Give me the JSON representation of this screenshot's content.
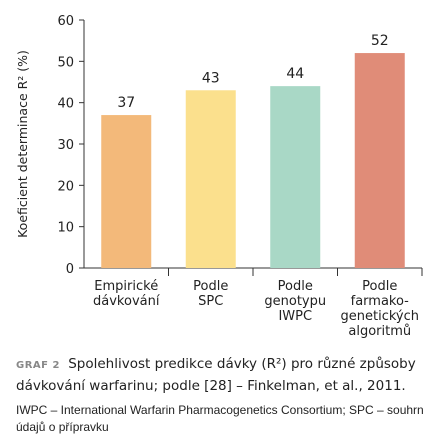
{
  "chart_data": {
    "type": "bar",
    "categories": [
      [
        "Empirické",
        "dávkování"
      ],
      [
        "Podle",
        "SPC"
      ],
      [
        "Podle",
        "genotypu",
        "IWPC"
      ],
      [
        "Podle",
        "farmako-",
        "genetických",
        "algoritmů"
      ]
    ],
    "values": [
      37,
      43,
      44,
      52
    ],
    "value_labels": [
      "37",
      "43",
      "44",
      "52"
    ],
    "colors": [
      "#f3b97a",
      "#fbe08d",
      "#a9d8c6",
      "#e08c78"
    ],
    "ylabel": "Koeficient determinace R² (%)",
    "ylim": [
      0,
      60
    ],
    "yticks": [
      "0",
      "10",
      "20",
      "30",
      "40",
      "50",
      "60"
    ],
    "grid": false
  },
  "caption": {
    "tag": "GRAF 2",
    "text": "Spolehlivost predikce dávky (R²) pro různé způsoby dávkování warfarinu; podle [28] – Finkelman, et al., 2011."
  },
  "footnote": "IWPC – International Warfarin Pharmacogenetics Consortium; SPC – souhrn údajů o přípravku"
}
